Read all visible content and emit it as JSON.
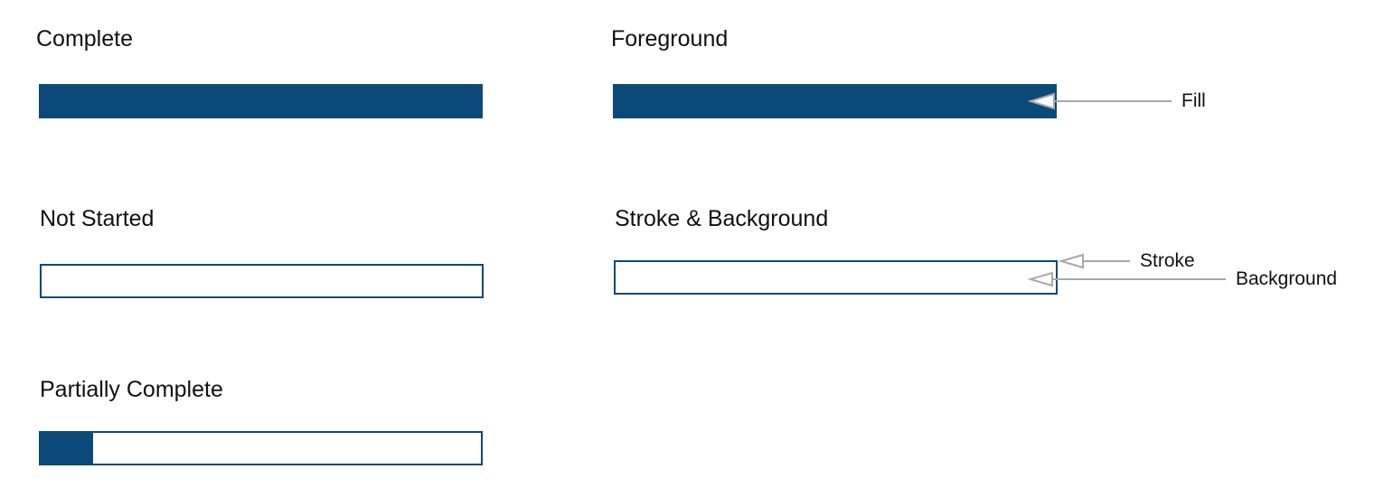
{
  "colors": {
    "bar": "#0b4a78",
    "callout_line": "#a9a9a9"
  },
  "examples": [
    {
      "label": "Complete",
      "progress": 1.0
    },
    {
      "label": "Not Started",
      "progress": 0.0
    },
    {
      "label": "Partially Complete",
      "progress": 0.12
    }
  ],
  "anatomy": {
    "foreground": {
      "label": "Foreground",
      "progress": 1.0,
      "callouts": [
        "Fill"
      ]
    },
    "stroke_background": {
      "label": "Stroke & Background",
      "progress": 0.0,
      "callouts": [
        "Stroke",
        "Background"
      ]
    }
  }
}
